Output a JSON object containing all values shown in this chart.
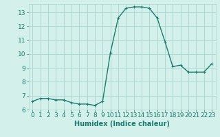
{
  "title": "",
  "xlabel": "Humidex (Indice chaleur)",
  "ylabel": "",
  "x": [
    0,
    1,
    2,
    3,
    4,
    5,
    6,
    7,
    8,
    9,
    10,
    11,
    12,
    13,
    14,
    15,
    16,
    17,
    18,
    19,
    20,
    21,
    22,
    23
  ],
  "y": [
    6.6,
    6.8,
    6.8,
    6.7,
    6.7,
    6.5,
    6.4,
    6.4,
    6.3,
    6.6,
    10.1,
    12.6,
    13.3,
    13.4,
    13.4,
    13.3,
    12.6,
    10.9,
    9.1,
    9.2,
    8.7,
    8.7,
    8.7,
    9.3
  ],
  "line_color": "#1a7a6e",
  "marker_color": "#1a7a6e",
  "bg_color": "#d4f0eb",
  "grid_color": "#aed8d2",
  "tick_color": "#1a7a6e",
  "label_color": "#1a7a6e",
  "ylim": [
    6,
    13.6
  ],
  "yticks": [
    6,
    7,
    8,
    9,
    10,
    11,
    12,
    13
  ],
  "xlim": [
    -0.5,
    23.5
  ],
  "xticks": [
    0,
    1,
    2,
    3,
    4,
    5,
    6,
    7,
    8,
    9,
    10,
    11,
    12,
    13,
    14,
    15,
    16,
    17,
    18,
    19,
    20,
    21,
    22,
    23
  ],
  "xtick_labels": [
    "0",
    "1",
    "2",
    "3",
    "4",
    "5",
    "6",
    "7",
    "8",
    "9",
    "10",
    "11",
    "12",
    "13",
    "14",
    "15",
    "16",
    "17",
    "18",
    "19",
    "20",
    "21",
    "22",
    "23"
  ],
  "marker_size": 2.5,
  "line_width": 1.0,
  "xlabel_fontsize": 7,
  "tick_fontsize": 6.5
}
